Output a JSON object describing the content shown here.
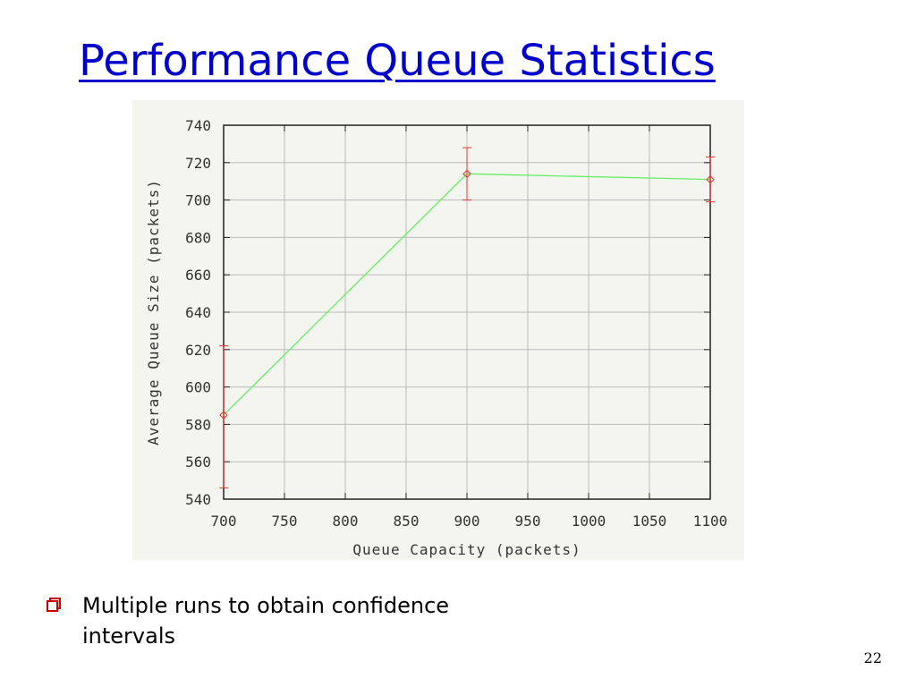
{
  "slide": {
    "title": "Performance Queue Statistics",
    "bullet": "Multiple runs to obtain confidence intervals",
    "bullet_icon": "hollow-square-bullet-icon",
    "page_number": "22",
    "title_color": "#0000cc",
    "bullet_color": "#cc0000"
  },
  "chart_data": {
    "type": "line",
    "xlabel": "Queue Capacity (packets)",
    "ylabel": "Average Queue Size (packets)",
    "xlim": [
      700,
      1100
    ],
    "ylim": [
      540,
      740
    ],
    "x_ticks": [
      700,
      750,
      800,
      850,
      900,
      950,
      1000,
      1050,
      1100
    ],
    "y_ticks": [
      540,
      560,
      580,
      600,
      620,
      640,
      660,
      680,
      700,
      720,
      740
    ],
    "grid": true,
    "series": [
      {
        "x": [
          700,
          900,
          1100
        ],
        "y": [
          585,
          714,
          711
        ],
        "error_low": [
          546,
          700,
          699
        ],
        "error_high": [
          622,
          728,
          723
        ],
        "line_color": "#66ee66",
        "marker_color": "#ee3333",
        "marker": "diamond"
      }
    ]
  }
}
